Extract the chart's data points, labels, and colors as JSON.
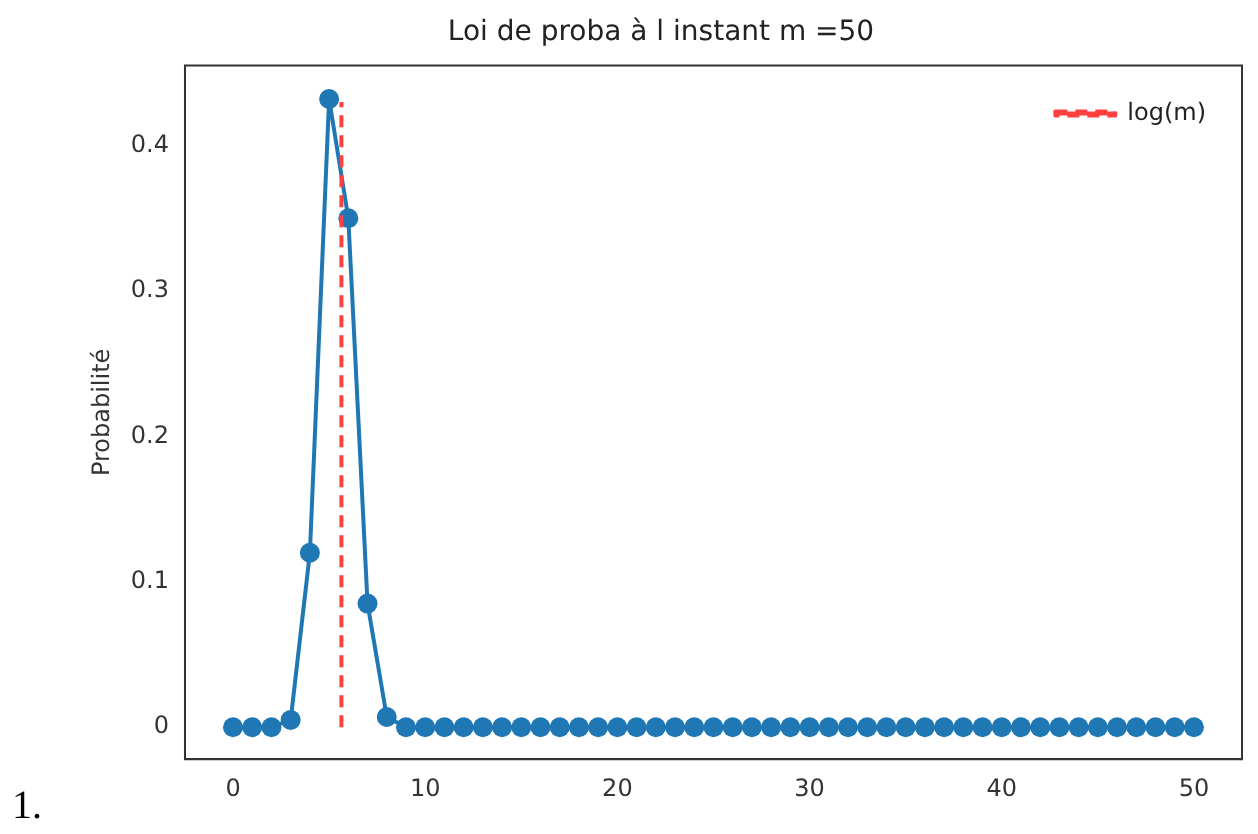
{
  "chart_data": {
    "type": "line",
    "title": "Loi de proba à l instant m =50",
    "ylabel": "Probabilité",
    "x": [
      0,
      1,
      2,
      3,
      4,
      5,
      6,
      7,
      8,
      9,
      10,
      11,
      12,
      13,
      14,
      15,
      16,
      17,
      18,
      19,
      20,
      21,
      22,
      23,
      24,
      25,
      26,
      27,
      28,
      29,
      30,
      31,
      32,
      33,
      34,
      35,
      36,
      37,
      38,
      39,
      40,
      41,
      42,
      43,
      44,
      45,
      46,
      47,
      48,
      49,
      50
    ],
    "series": [
      {
        "color": "#1f77b4",
        "marker": "circle",
        "line_style": "solid",
        "values": [
          0,
          0,
          0,
          0.005,
          0.12,
          0.432,
          0.35,
          0.085,
          0.007,
          0,
          0,
          0,
          0,
          0,
          0,
          0,
          0,
          0,
          0,
          0,
          0,
          0,
          0,
          0,
          0,
          0,
          0,
          0,
          0,
          0,
          0,
          0,
          0,
          0,
          0,
          0,
          0,
          0,
          0,
          0,
          0,
          0,
          0,
          0,
          0,
          0,
          0,
          0,
          0,
          0,
          0
        ]
      },
      {
        "name": "log(m)",
        "type": "line",
        "color": "#ff4040",
        "marker": "none",
        "line_style": "dashed",
        "x": [
          5.64,
          5.64
        ],
        "values": [
          0,
          0.43
        ]
      }
    ],
    "xlim": [
      -2.5,
      52.5
    ],
    "ylim": [
      -0.022,
      0.455
    ],
    "xticks": [
      0,
      10,
      20,
      30,
      40,
      50
    ],
    "yticks": [
      0,
      0.1,
      0.2,
      0.3,
      0.4
    ],
    "grid": false,
    "legend": "top right",
    "annotations": [
      "1."
    ]
  }
}
